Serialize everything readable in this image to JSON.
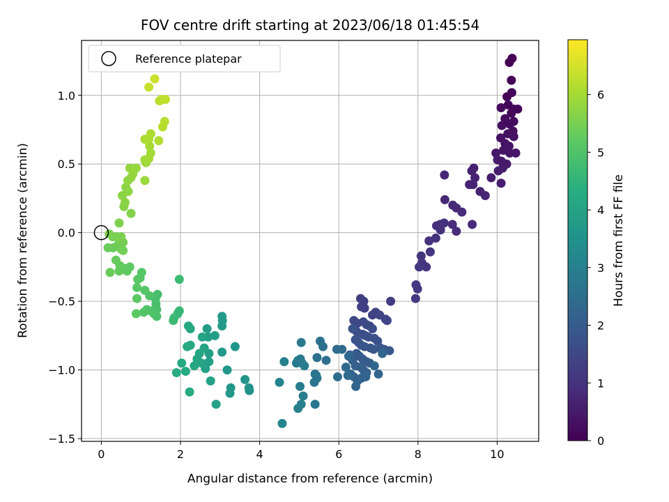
{
  "chart_data": {
    "type": "scatter",
    "title": "FOV centre drift starting at 2023/06/18 01:45:54",
    "xlabel": "Angular distance from reference (arcmin)",
    "ylabel": "Rotation from reference (arcmin)",
    "xlim": [
      -0.5,
      11.05
    ],
    "ylim": [
      -1.52,
      1.4
    ],
    "xticks": [
      0,
      2,
      4,
      6,
      8,
      10
    ],
    "yticks": [
      -1.5,
      -1.0,
      -0.5,
      0.0,
      0.5,
      1.0
    ],
    "grid": true,
    "colormap": "viridis",
    "colorbar": {
      "label": "Hours from first FF file",
      "range": [
        0,
        6.95
      ],
      "ticks": [
        0,
        1,
        2,
        3,
        4,
        5,
        6
      ]
    },
    "legend": {
      "position": "top-left",
      "entries": [
        "Reference platepar"
      ]
    },
    "reference_point": {
      "x": 0.0,
      "y": 0.0
    },
    "points": [
      [
        10.38,
        1.27,
        0.0
      ],
      [
        10.31,
        1.24,
        0.02
      ],
      [
        10.36,
        1.11,
        0.04
      ],
      [
        10.37,
        1.02,
        0.06
      ],
      [
        10.25,
        0.99,
        0.08
      ],
      [
        10.28,
        0.93,
        0.1
      ],
      [
        10.42,
        0.9,
        0.12
      ],
      [
        10.52,
        0.9,
        0.14
      ],
      [
        10.36,
        0.87,
        0.16
      ],
      [
        10.1,
        0.91,
        0.18
      ],
      [
        10.2,
        0.83,
        0.2
      ],
      [
        10.32,
        0.79,
        0.22
      ],
      [
        10.42,
        0.81,
        0.24
      ],
      [
        10.12,
        0.78,
        0.26
      ],
      [
        10.4,
        0.74,
        0.28
      ],
      [
        10.27,
        0.72,
        0.3
      ],
      [
        10.42,
        0.7,
        0.32
      ],
      [
        10.09,
        0.69,
        0.34
      ],
      [
        10.2,
        0.65,
        0.36
      ],
      [
        10.3,
        0.63,
        0.38
      ],
      [
        10.16,
        0.6,
        0.4
      ],
      [
        10.32,
        0.58,
        0.42
      ],
      [
        10.47,
        0.58,
        0.44
      ],
      [
        9.97,
        0.58,
        0.46
      ],
      [
        10.11,
        0.52,
        0.48
      ],
      [
        10.24,
        0.5,
        0.5
      ],
      [
        10.01,
        0.53,
        0.52
      ],
      [
        10.14,
        0.47,
        0.54
      ],
      [
        10.03,
        0.45,
        0.56
      ],
      [
        10.1,
        0.36,
        0.58
      ],
      [
        9.85,
        0.4,
        0.6
      ],
      [
        9.41,
        0.47,
        0.62
      ],
      [
        9.36,
        0.45,
        0.64
      ],
      [
        9.44,
        0.4,
        0.66
      ],
      [
        9.3,
        0.35,
        0.68
      ],
      [
        9.39,
        0.35,
        0.7
      ],
      [
        9.57,
        0.3,
        0.72
      ],
      [
        9.7,
        0.27,
        0.74
      ],
      [
        8.67,
        0.42,
        0.76
      ],
      [
        8.68,
        0.24,
        0.78
      ],
      [
        8.88,
        0.2,
        0.8
      ],
      [
        8.97,
        0.18,
        0.82
      ],
      [
        9.11,
        0.15,
        0.84
      ],
      [
        9.37,
        0.06,
        0.86
      ],
      [
        8.87,
        0.06,
        0.88
      ],
      [
        8.97,
        0.01,
        0.9
      ],
      [
        8.47,
        0.05,
        0.92
      ],
      [
        8.56,
        0.06,
        0.94
      ],
      [
        8.57,
        0.02,
        0.96
      ],
      [
        8.66,
        0.07,
        0.98
      ],
      [
        8.45,
        -0.04,
        1.0
      ],
      [
        8.28,
        -0.06,
        1.02
      ],
      [
        8.31,
        -0.14,
        1.04
      ],
      [
        8.08,
        -0.17,
        1.06
      ],
      [
        8.1,
        -0.22,
        1.08
      ],
      [
        8.21,
        -0.25,
        1.1
      ],
      [
        8.03,
        -0.25,
        1.12
      ],
      [
        7.95,
        -0.38,
        1.14
      ],
      [
        7.99,
        -0.41,
        1.16
      ],
      [
        7.94,
        -0.48,
        1.18
      ],
      [
        7.31,
        -0.5,
        1.22
      ],
      [
        6.55,
        -0.48,
        1.28
      ],
      [
        6.63,
        -0.5,
        1.3
      ],
      [
        6.57,
        -0.54,
        1.32
      ],
      [
        6.65,
        -0.55,
        1.34
      ],
      [
        6.85,
        -0.6,
        1.36
      ],
      [
        6.93,
        -0.58,
        1.38
      ],
      [
        7.03,
        -0.6,
        1.4
      ],
      [
        7.18,
        -0.63,
        1.42
      ],
      [
        7.22,
        -0.64,
        1.44
      ],
      [
        6.38,
        -0.64,
        1.48
      ],
      [
        6.47,
        -0.66,
        1.5
      ],
      [
        6.62,
        -0.65,
        1.52
      ],
      [
        6.7,
        -0.67,
        1.54
      ],
      [
        6.78,
        -0.68,
        1.56
      ],
      [
        6.85,
        -0.7,
        1.58
      ],
      [
        6.45,
        -0.72,
        1.6
      ],
      [
        6.52,
        -0.74,
        1.62
      ],
      [
        6.6,
        -0.74,
        1.64
      ],
      [
        6.67,
        -0.75,
        1.66
      ],
      [
        6.75,
        -0.76,
        1.68
      ],
      [
        6.9,
        -0.77,
        1.7
      ],
      [
        6.98,
        -0.79,
        1.72
      ],
      [
        6.35,
        -0.7,
        1.74
      ],
      [
        6.42,
        -0.78,
        1.76
      ],
      [
        6.5,
        -0.8,
        1.78
      ],
      [
        6.57,
        -0.82,
        1.8
      ],
      [
        6.65,
        -0.83,
        1.82
      ],
      [
        6.8,
        -0.84,
        1.84
      ],
      [
        6.88,
        -0.85,
        1.86
      ],
      [
        7.05,
        -0.84,
        1.88
      ],
      [
        7.15,
        -0.85,
        1.9
      ],
      [
        7.28,
        -0.86,
        1.92
      ],
      [
        6.45,
        -0.88,
        1.94
      ],
      [
        6.52,
        -0.9,
        1.96
      ],
      [
        6.6,
        -0.92,
        1.98
      ],
      [
        6.7,
        -0.94,
        2.0
      ],
      [
        6.78,
        -0.95,
        2.02
      ],
      [
        6.28,
        -0.89,
        2.04
      ],
      [
        6.35,
        -0.93,
        2.06
      ],
      [
        6.42,
        -0.97,
        2.08
      ],
      [
        6.55,
        -0.98,
        2.1
      ],
      [
        6.62,
        -1.0,
        2.12
      ],
      [
        6.7,
        -1.02,
        2.14
      ],
      [
        6.3,
        -1.03,
        2.16
      ],
      [
        6.38,
        -1.05,
        2.18
      ],
      [
        6.47,
        -1.08,
        2.2
      ],
      [
        6.57,
        -1.06,
        2.22
      ],
      [
        6.68,
        -1.05,
        2.24
      ],
      [
        6.43,
        -1.12,
        2.26
      ],
      [
        7.0,
        -1.03,
        2.28
      ],
      [
        6.9,
        -0.97,
        2.3
      ],
      [
        7.1,
        -0.88,
        2.32
      ],
      [
        6.25,
        -0.9,
        2.34
      ],
      [
        6.18,
        -0.98,
        2.36
      ],
      [
        6.23,
        -1.04,
        2.38
      ],
      [
        6.08,
        -0.85,
        2.4
      ],
      [
        5.95,
        -0.85,
        2.44
      ],
      [
        5.97,
        -1.05,
        2.46
      ],
      [
        5.68,
        -0.93,
        2.5
      ],
      [
        5.53,
        -0.79,
        2.54
      ],
      [
        5.6,
        -0.83,
        2.56
      ],
      [
        5.45,
        -0.91,
        2.6
      ],
      [
        5.4,
        -1.03,
        2.64
      ],
      [
        5.43,
        -1.04,
        2.66
      ],
      [
        5.38,
        -1.09,
        2.68
      ],
      [
        5.45,
        -1.06,
        2.7
      ],
      [
        5.4,
        -1.25,
        2.74
      ],
      [
        5.05,
        -0.8,
        2.78
      ],
      [
        5.03,
        -0.92,
        2.8
      ],
      [
        4.97,
        -0.93,
        2.82
      ],
      [
        4.93,
        -0.95,
        2.84
      ],
      [
        5.07,
        -0.95,
        2.86
      ],
      [
        5.13,
        -0.97,
        2.88
      ],
      [
        5.02,
        -1.12,
        2.92
      ],
      [
        5.1,
        -1.19,
        2.94
      ],
      [
        5.05,
        -1.25,
        2.96
      ],
      [
        4.97,
        -1.28,
        2.98
      ],
      [
        4.62,
        -0.94,
        3.02
      ],
      [
        4.5,
        -1.09,
        3.06
      ],
      [
        4.57,
        -1.39,
        3.1
      ],
      [
        3.73,
        -1.13,
        3.5
      ],
      [
        3.74,
        -1.15,
        3.54
      ],
      [
        3.63,
        -1.07,
        3.56
      ],
      [
        3.38,
        -0.83,
        3.6
      ],
      [
        3.18,
        -1.0,
        3.64
      ],
      [
        3.27,
        -1.13,
        3.66
      ],
      [
        3.25,
        -1.17,
        3.68
      ],
      [
        3.05,
        -0.87,
        3.72
      ],
      [
        3.05,
        -0.68,
        3.74
      ],
      [
        3.06,
        -0.64,
        3.76
      ],
      [
        3.05,
        -0.61,
        3.78
      ],
      [
        2.67,
        -0.7,
        3.82
      ],
      [
        2.7,
        -0.76,
        3.84
      ],
      [
        2.87,
        -0.75,
        3.86
      ],
      [
        2.72,
        -0.88,
        3.88
      ],
      [
        2.72,
        -0.94,
        3.9
      ],
      [
        2.63,
        -0.99,
        3.92
      ],
      [
        2.76,
        -1.08,
        3.94
      ],
      [
        2.9,
        -1.25,
        3.96
      ],
      [
        2.55,
        -0.76,
        4.0
      ],
      [
        2.6,
        -0.84,
        4.02
      ],
      [
        2.48,
        -0.88,
        4.04
      ],
      [
        2.42,
        -0.92,
        4.06
      ],
      [
        2.53,
        -0.95,
        4.08
      ],
      [
        2.35,
        -0.97,
        4.1
      ],
      [
        2.25,
        -0.7,
        4.14
      ],
      [
        2.25,
        -0.82,
        4.16
      ],
      [
        2.2,
        -0.68,
        4.18
      ],
      [
        2.17,
        -0.83,
        4.2
      ],
      [
        2.03,
        -0.95,
        4.22
      ],
      [
        2.13,
        -1.01,
        4.24
      ],
      [
        2.23,
        -1.16,
        4.26
      ],
      [
        1.9,
        -1.02,
        4.3
      ],
      [
        1.97,
        -0.57,
        4.6
      ],
      [
        1.93,
        -0.59,
        4.64
      ],
      [
        1.84,
        -0.62,
        4.66
      ],
      [
        1.82,
        -0.64,
        4.68
      ],
      [
        1.97,
        -0.34,
        4.72
      ],
      [
        1.42,
        -0.45,
        4.86
      ],
      [
        1.37,
        -0.48,
        4.88
      ],
      [
        1.38,
        -0.52,
        4.9
      ],
      [
        1.4,
        -0.56,
        4.92
      ],
      [
        1.33,
        -0.59,
        4.94
      ],
      [
        1.4,
        -0.61,
        4.96
      ],
      [
        1.22,
        -0.46,
        4.98
      ],
      [
        1.25,
        -0.57,
        5.0
      ],
      [
        1.15,
        -0.56,
        5.02
      ],
      [
        1.1,
        -0.42,
        5.04
      ],
      [
        1.07,
        -0.58,
        5.06
      ],
      [
        0.98,
        -0.33,
        5.08
      ],
      [
        1.02,
        -0.29,
        5.1
      ],
      [
        0.92,
        -0.34,
        5.12
      ],
      [
        0.9,
        -0.4,
        5.14
      ],
      [
        0.9,
        -0.48,
        5.16
      ],
      [
        0.88,
        -0.59,
        5.18
      ],
      [
        0.72,
        -0.25,
        5.2
      ],
      [
        0.65,
        -0.28,
        5.22
      ],
      [
        0.57,
        -0.26,
        5.24
      ],
      [
        0.47,
        -0.24,
        5.26
      ],
      [
        0.45,
        -0.28,
        5.28
      ],
      [
        0.37,
        -0.2,
        5.3
      ],
      [
        0.22,
        -0.29,
        5.32
      ],
      [
        0.17,
        -0.11,
        5.34
      ],
      [
        0.3,
        -0.11,
        5.36
      ],
      [
        0.42,
        -0.09,
        5.38
      ],
      [
        0.5,
        -0.12,
        5.4
      ],
      [
        0.55,
        -0.13,
        5.42
      ],
      [
        0.47,
        -0.05,
        5.44
      ],
      [
        0.55,
        -0.07,
        5.46
      ],
      [
        0.4,
        -0.03,
        5.48
      ],
      [
        0.29,
        -0.03,
        5.5
      ],
      [
        0.2,
        -0.01,
        5.52
      ],
      [
        0.5,
        -0.03,
        5.54
      ],
      [
        0.45,
        0.07,
        5.58
      ],
      [
        0.75,
        0.14,
        5.62
      ],
      [
        0.57,
        0.19,
        5.66
      ],
      [
        0.6,
        0.22,
        5.68
      ],
      [
        0.53,
        0.27,
        5.7
      ],
      [
        0.62,
        0.33,
        5.72
      ],
      [
        0.68,
        0.3,
        5.74
      ],
      [
        0.67,
        0.38,
        5.76
      ],
      [
        0.75,
        0.4,
        5.78
      ],
      [
        0.8,
        0.43,
        5.8
      ],
      [
        0.72,
        0.47,
        5.82
      ],
      [
        0.88,
        0.47,
        5.84
      ],
      [
        1.1,
        0.38,
        5.88
      ],
      [
        1.13,
        0.51,
        5.92
      ],
      [
        1.1,
        0.53,
        5.94
      ],
      [
        1.2,
        0.54,
        5.96
      ],
      [
        1.25,
        0.58,
        5.98
      ],
      [
        1.22,
        0.63,
        6.0
      ],
      [
        1.1,
        0.68,
        6.04
      ],
      [
        1.2,
        0.68,
        6.06
      ],
      [
        1.25,
        0.72,
        6.08
      ],
      [
        1.45,
        0.67,
        6.12
      ],
      [
        1.55,
        0.77,
        6.16
      ],
      [
        1.6,
        0.81,
        6.18
      ],
      [
        1.47,
        0.96,
        6.22
      ],
      [
        1.52,
        0.97,
        6.26
      ],
      [
        1.62,
        0.97,
        6.3
      ],
      [
        1.2,
        1.06,
        6.34
      ],
      [
        1.35,
        1.12,
        6.4
      ]
    ]
  }
}
